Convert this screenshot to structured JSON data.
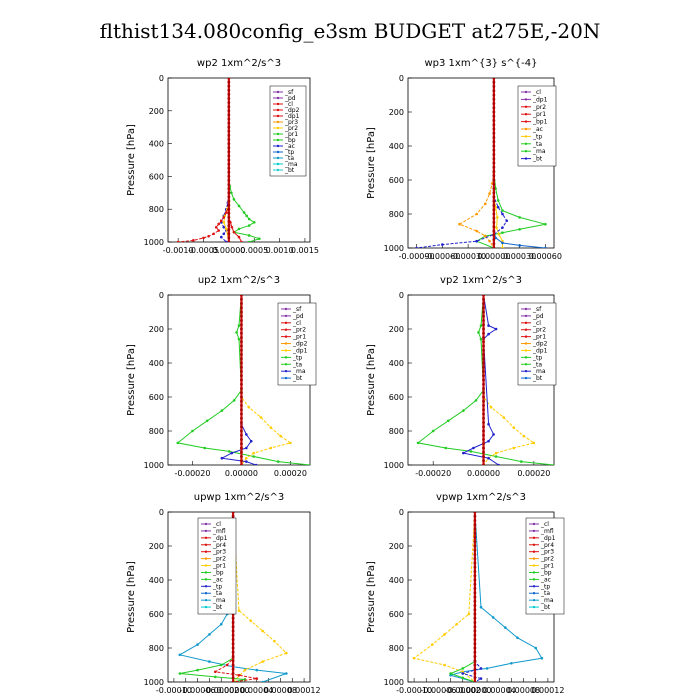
{
  "figure": {
    "title": "flthist134.080config_e3sm  BUDGET at275E,-20N"
  },
  "chart_data": [
    {
      "type": "line",
      "title": "wp2   1xm^2/s^3",
      "ylabel": "Pressure  [hPa]",
      "xlim": [
        -0.0012,
        0.0016
      ],
      "ylim": [
        1000,
        0
      ],
      "xticks": [
        -0.001,
        -0.0005,
        0,
        0.0005,
        0.001,
        0.0015
      ],
      "xtick_labels": [
        "-0.0010",
        "-0.0005",
        "0.00000",
        "0.0005",
        "0.0010",
        "0.0015"
      ],
      "yticks": [
        0,
        200,
        400,
        600,
        800,
        1000
      ],
      "ytick_labels": [
        "0",
        "200",
        "400",
        "600",
        "800",
        "1000"
      ],
      "legend": [
        "_sf",
        "_pd",
        "_cl",
        "_dp2",
        "_dp1",
        "_pr3",
        "_pr2",
        "_pr1",
        "_bp",
        "_ac",
        "_tp",
        "_ta",
        "_ma",
        "_bt"
      ],
      "series": [
        {
          "name": "_dp1",
          "color": "#22cc22",
          "x": [
            0,
            0,
            0,
            2e-05,
            5e-05,
            0.0001,
            0.0002,
            0.0003,
            0.00035,
            0.0004,
            0.0005,
            0.0004,
            0.0002,
            0.0001,
            0.0004,
            0.0006,
            0.0004
          ],
          "y": [
            0,
            300,
            620,
            660,
            700,
            740,
            780,
            820,
            840,
            860,
            880,
            900,
            920,
            940,
            960,
            980,
            1000
          ]
        },
        {
          "name": "_tp",
          "color": "#2222cc",
          "x": [
            0,
            0,
            -2e-05,
            -5e-05,
            -0.0001,
            -0.00015,
            -0.0001,
            -5e-05,
            -0.0001,
            -0.00015,
            -5e-05
          ],
          "y": [
            0,
            700,
            760,
            800,
            840,
            880,
            910,
            930,
            950,
            970,
            1000
          ]
        },
        {
          "name": "_pr2",
          "color": "#ffcc00",
          "x": [
            0,
            0,
            -3e-05,
            -8e-05,
            -0.0001,
            -5e-05,
            0
          ],
          "y": [
            0,
            760,
            800,
            840,
            880,
            920,
            1000
          ]
        },
        {
          "name": "_cl",
          "color": "#dd1111",
          "x": [
            0,
            0,
            -5e-05,
            -0.0001,
            -0.00015,
            -0.0002,
            -0.00025,
            -0.0002,
            -0.0003,
            -0.0004,
            -0.0005,
            -0.0007,
            -0.001
          ],
          "y": [
            0,
            780,
            820,
            850,
            870,
            890,
            910,
            930,
            950,
            965,
            975,
            990,
            1000
          ]
        },
        {
          "name": "_dp2",
          "color": "#dd1111",
          "x": [
            0,
            0,
            3e-05,
            6e-05,
            0.0001,
            0.0002,
            0.00025
          ],
          "y": [
            0,
            850,
            880,
            910,
            940,
            970,
            1000
          ]
        },
        {
          "name": "_sf",
          "color": "#8833aa",
          "x": [
            0,
            0,
            0,
            0
          ],
          "y": [
            0,
            500,
            900,
            1000
          ]
        }
      ]
    },
    {
      "type": "line",
      "title": "wp3   1xm^{3} s^{-4}",
      "ylabel": "Pressure  [hPa]",
      "xlim": [
        -0.001,
        0.0007
      ],
      "ylim": [
        1000,
        0
      ],
      "xticks": [
        -0.0009,
        -0.0006,
        -0.0003,
        0,
        0.0003,
        0.0006
      ],
      "xtick_labels": [
        "-0.00090",
        "-0.00060",
        "-0.00030",
        "0.00000",
        "0.00030",
        "0.00060"
      ],
      "yticks": [
        0,
        200,
        400,
        600,
        800,
        1000
      ],
      "ytick_labels": [
        "0",
        "200",
        "400",
        "600",
        "800",
        "1000"
      ],
      "legend": [
        "_cl",
        "_dp1",
        "_pr2",
        "_pr1",
        "_bp1",
        "_ac",
        "_tp",
        "_ta",
        "_ma",
        "_bt"
      ],
      "series": [
        {
          "name": "_ac",
          "color": "#22cc22",
          "x": [
            0,
            0,
            2e-05,
            5e-05,
            0.0001,
            0.0003,
            0.0006,
            0.0003,
            0.0001,
            -0.0001,
            -0.0002,
            0
          ],
          "y": [
            0,
            550,
            650,
            720,
            780,
            820,
            860,
            890,
            910,
            930,
            960,
            1000
          ]
        },
        {
          "name": "_pr2",
          "color": "#ff9900",
          "x": [
            0,
            0,
            -2e-05,
            -5e-05,
            -0.0001,
            -0.0002,
            -0.0004,
            -0.0002,
            -0.0001,
            -5e-05,
            0
          ],
          "y": [
            0,
            560,
            620,
            680,
            740,
            800,
            860,
            900,
            930,
            960,
            1000
          ]
        },
        {
          "name": "_pr1",
          "color": "#ffcc00",
          "x": [
            0,
            0,
            2e-05,
            4e-05,
            3e-05,
            6e-05,
            0.0001,
            0.0001
          ],
          "y": [
            0,
            700,
            760,
            820,
            880,
            920,
            960,
            1000
          ]
        },
        {
          "name": "_tp",
          "color": "#2222cc",
          "x": [
            0,
            0,
            5e-05,
            0.0001,
            0.00015,
            0.0001,
            0,
            -0.0002,
            -0.0006,
            -0.0009
          ],
          "y": [
            0,
            700,
            760,
            800,
            840,
            880,
            920,
            960,
            980,
            1000
          ]
        },
        {
          "name": "_ta",
          "color": "#1166cc",
          "x": [
            0,
            0,
            2e-05,
            0.0001,
            0.0003,
            0.0006
          ],
          "y": [
            0,
            900,
            940,
            970,
            985,
            1000
          ]
        },
        {
          "name": "_cl",
          "color": "#dd1111",
          "x": [
            0,
            0,
            0,
            0
          ],
          "y": [
            0,
            500,
            900,
            1000
          ]
        }
      ]
    },
    {
      "type": "line",
      "title": "up2   1xm^2/s^3",
      "ylabel": "Pressure  [hPa]",
      "xlim": [
        -0.0003,
        0.00028
      ],
      "ylim": [
        1000,
        0
      ],
      "xticks": [
        -0.0002,
        0,
        0.0002
      ],
      "xtick_labels": [
        "-0.00020",
        "0.00000",
        "0.00020"
      ],
      "yticks": [
        0,
        200,
        400,
        600,
        800,
        1000
      ],
      "ytick_labels": [
        "0",
        "200",
        "400",
        "600",
        "800",
        "1000"
      ],
      "legend": [
        "_sf",
        "_pd",
        "_cl",
        "_pr2",
        "_pr1",
        "_dp2",
        "_dp1",
        "_tp",
        "_ta",
        "_ma",
        "_bt"
      ],
      "series": [
        {
          "name": "_dp1",
          "color": "#22cc22",
          "x": [
            0,
            -1e-05,
            -2e-05,
            -1e-05,
            0,
            -3e-05,
            -8e-05,
            -0.00014,
            -0.0002,
            -0.00026,
            -0.00015,
            -5e-05,
            5e-05,
            0.00015,
            0.00028
          ],
          "y": [
            0,
            180,
            220,
            260,
            560,
            620,
            680,
            740,
            800,
            870,
            900,
            920,
            950,
            980,
            1000
          ]
        },
        {
          "name": "_pr2",
          "color": "#ffcc00",
          "x": [
            0,
            0,
            3e-05,
            8e-05,
            0.00012,
            0.00016,
            0.0002,
            0.00012,
            5e-05,
            2e-05,
            0
          ],
          "y": [
            0,
            600,
            660,
            720,
            780,
            830,
            870,
            900,
            930,
            960,
            1000
          ]
        },
        {
          "name": "_tp",
          "color": "#2222cc",
          "x": [
            0,
            0,
            2e-05,
            4e-05,
            2e-05,
            -4e-05,
            -8e-05,
            2e-05,
            6e-05
          ],
          "y": [
            0,
            760,
            820,
            860,
            900,
            930,
            960,
            980,
            1000
          ]
        },
        {
          "name": "_cl",
          "color": "#dd1111",
          "x": [
            0,
            0,
            0,
            0
          ],
          "y": [
            0,
            500,
            900,
            1000
          ]
        }
      ]
    },
    {
      "type": "line",
      "title": "vp2   1xm^2/s^3",
      "ylabel": "Pressure  [hPa]",
      "xlim": [
        -0.0003,
        0.00028
      ],
      "ylim": [
        1000,
        0
      ],
      "xticks": [
        -0.0002,
        0,
        0.0002
      ],
      "xtick_labels": [
        "-0.00020",
        "0.00000",
        "0.00020"
      ],
      "yticks": [
        0,
        200,
        400,
        600,
        800,
        1000
      ],
      "ytick_labels": [
        "0",
        "200",
        "400",
        "600",
        "800",
        "1000"
      ],
      "legend": [
        "_sf",
        "_pd",
        "_cl",
        "_pr2",
        "_pr1",
        "_dp2",
        "_dp1",
        "_tp",
        "_ta",
        "_ma",
        "_bt"
      ],
      "series": [
        {
          "name": "_dp1",
          "color": "#22cc22",
          "x": [
            0,
            -1e-05,
            -2e-05,
            -1e-05,
            0,
            -3e-05,
            -8e-05,
            -0.00014,
            -0.0002,
            -0.00026,
            -0.00015,
            -5e-05,
            5e-05,
            0.00015,
            0.00028
          ],
          "y": [
            0,
            180,
            220,
            260,
            560,
            620,
            680,
            740,
            800,
            870,
            900,
            920,
            950,
            980,
            1000
          ]
        },
        {
          "name": "_pr2",
          "color": "#ffcc00",
          "x": [
            0,
            0,
            3e-05,
            8e-05,
            0.00012,
            0.00016,
            0.0002,
            0.00012,
            5e-05,
            2e-05,
            0
          ],
          "y": [
            0,
            600,
            660,
            720,
            780,
            830,
            870,
            900,
            930,
            960,
            1000
          ]
        },
        {
          "name": "_tp",
          "color": "#2222cc",
          "x": [
            0,
            2e-05,
            5e-05,
            2e-05,
            0,
            2e-05,
            4e-05,
            2e-05,
            -4e-05,
            -8e-05,
            2e-05,
            6e-05
          ],
          "y": [
            0,
            180,
            200,
            230,
            260,
            760,
            820,
            860,
            900,
            930,
            960,
            1000
          ]
        },
        {
          "name": "_cl",
          "color": "#dd1111",
          "x": [
            0,
            0,
            0,
            0
          ],
          "y": [
            0,
            500,
            900,
            1000
          ]
        }
      ]
    },
    {
      "type": "line",
      "title": "upwp   1xm^2/s^3",
      "ylabel": "Pressure  [hPa]",
      "xlim": [
        -0.00011,
        0.00013
      ],
      "ylim": [
        1000,
        0
      ],
      "xticks": [
        -0.0001,
        -8e-05,
        -6e-05,
        -4e-05,
        -2e-05,
        0,
        2e-05,
        4e-05,
        6e-05,
        8e-05,
        0.0001,
        0.00012
      ],
      "xtick_labels": [
        "-0.00010",
        "",
        "-0.00006",
        "",
        "-0.00002",
        "0.00000",
        "",
        "0.00004",
        "",
        "0.00008",
        "",
        "0.00012"
      ],
      "yticks": [
        0,
        200,
        400,
        600,
        800,
        1000
      ],
      "ytick_labels": [
        "0",
        "200",
        "400",
        "600",
        "800",
        "1000"
      ],
      "legend": [
        "_cl",
        "_mfl",
        "_dp1",
        "_pr4",
        "_pr3",
        "_pr2",
        "_pr1",
        "_bp",
        "_ac",
        "_tp",
        "_ta",
        "_ma",
        "_bt"
      ],
      "series": [
        {
          "name": "_ta",
          "color": "#1199cc",
          "x": [
            0,
            -5e-06,
            -1e-05,
            -2e-05,
            -4e-05,
            -6e-05,
            -9e-05,
            -4e-05,
            0,
            4e-05,
            9e-05,
            5e-05
          ],
          "y": [
            0,
            550,
            600,
            660,
            720,
            780,
            840,
            880,
            910,
            930,
            950,
            1000
          ]
        },
        {
          "name": "_pr1",
          "color": "#ffcc00",
          "x": [
            0,
            1e-05,
            3e-05,
            5e-05,
            7e-05,
            9e-05,
            5e-05,
            2e-05,
            0
          ],
          "y": [
            0,
            580,
            640,
            700,
            760,
            830,
            880,
            930,
            1000
          ]
        },
        {
          "name": "_ac",
          "color": "#22cc22",
          "x": [
            0,
            0,
            -2e-05,
            -6e-05,
            -9e-05,
            -3e-05,
            2e-05,
            0
          ],
          "y": [
            0,
            860,
            900,
            930,
            950,
            970,
            985,
            1000
          ]
        },
        {
          "name": "_pr2",
          "color": "#dd1111",
          "x": [
            0,
            0,
            -1e-05,
            -3e-05,
            1e-05,
            4e-05,
            0
          ],
          "y": [
            0,
            860,
            900,
            940,
            960,
            980,
            1000
          ]
        },
        {
          "name": "_cl",
          "color": "#8833aa",
          "x": [
            0,
            0,
            0,
            0
          ],
          "y": [
            0,
            500,
            900,
            1000
          ]
        }
      ]
    },
    {
      "type": "line",
      "title": "vpwp   1xm^2/s^3",
      "ylabel": "Pressure  [hPa]",
      "xlim": [
        -0.00011,
        0.00013
      ],
      "ylim": [
        1000,
        0
      ],
      "xticks": [
        -0.0001,
        -8e-05,
        -6e-05,
        -4e-05,
        -2e-05,
        0,
        2e-05,
        4e-05,
        6e-05,
        8e-05,
        0.0001,
        0.00012
      ],
      "xtick_labels": [
        "-0.00010",
        "",
        "-0.00006",
        "",
        "-0.00002",
        "0.00000",
        "",
        "0.00004",
        "",
        "0.00008",
        "",
        "0.00012"
      ],
      "yticks": [
        0,
        200,
        400,
        600,
        800,
        1000
      ],
      "ytick_labels": [
        "0",
        "200",
        "400",
        "600",
        "800",
        "1000"
      ],
      "legend": [
        "_cl",
        "_mfl",
        "_dp1",
        "_pr4",
        "_pr3",
        "_pr2",
        "_pr1",
        "_bp",
        "_ac",
        "_tp",
        "_ta",
        "_ma",
        "_bt"
      ],
      "series": [
        {
          "name": "_ta",
          "color": "#1199cc",
          "x": [
            0,
            1e-05,
            3e-05,
            5e-05,
            7e-05,
            0.0001,
            0.00011,
            6e-05,
            2e-05,
            -2e-05,
            -4e-05,
            0
          ],
          "y": [
            0,
            560,
            620,
            680,
            740,
            800,
            860,
            890,
            920,
            940,
            960,
            1000
          ]
        },
        {
          "name": "_pr1",
          "color": "#ffcc00",
          "x": [
            0,
            -1e-05,
            -3e-05,
            -5e-05,
            -7e-05,
            -0.0001,
            -5e-05,
            -2e-05,
            0
          ],
          "y": [
            0,
            600,
            660,
            720,
            780,
            860,
            900,
            940,
            1000
          ]
        },
        {
          "name": "_ac",
          "color": "#22cc22",
          "x": [
            0,
            0,
            -2e-05,
            -4e-05,
            -2e-05,
            0
          ],
          "y": [
            0,
            880,
            920,
            950,
            975,
            1000
          ]
        },
        {
          "name": "_tp",
          "color": "#2222cc",
          "x": [
            0,
            0,
            1e-05,
            -2e-05,
            1e-05,
            0
          ],
          "y": [
            0,
            880,
            920,
            950,
            980,
            1000
          ]
        },
        {
          "name": "_cl",
          "color": "#8833aa",
          "x": [
            0,
            0,
            0,
            0
          ],
          "y": [
            0,
            500,
            900,
            1000
          ]
        }
      ]
    }
  ]
}
